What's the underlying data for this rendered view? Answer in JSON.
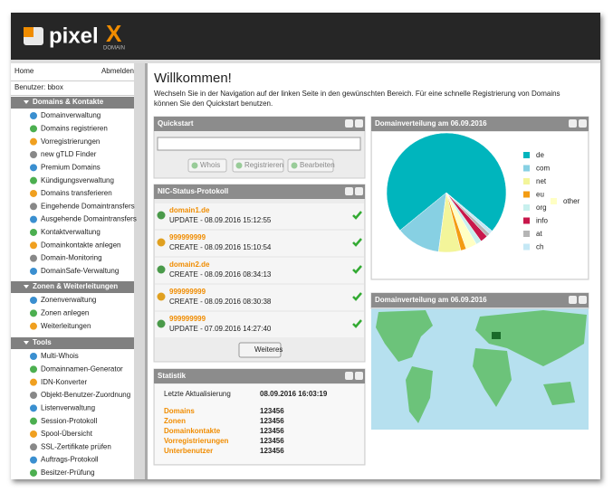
{
  "header": {
    "logo": "pixel",
    "logo_x": "X",
    "logo_sub": "DOMAIN"
  },
  "sidebar": {
    "home": "Home",
    "logout": "Abmelden",
    "user": "Benutzer: bbox",
    "sections": [
      {
        "title": "Domains & Kontakte",
        "items": [
          "Domainverwaltung",
          "Domains registrieren",
          "Vorregistrierungen",
          "new gTLD Finder",
          "Premium Domains",
          "Kündigungsverwaltung",
          "Domains transferieren",
          "Eingehende Domaintransfers",
          "Ausgehende Domaintransfers",
          "Kontaktverwaltung",
          "Domainkontakte anlegen",
          "Domain-Monitoring",
          "DomainSafe-Verwaltung"
        ]
      },
      {
        "title": "Zonen & Weiterleitungen",
        "items": [
          "Zonenverwaltung",
          "Zonen anlegen",
          "Weiterleitungen"
        ]
      },
      {
        "title": "Tools",
        "items": [
          "Multi-Whois",
          "Domainnamen-Generator",
          "IDN-Konverter",
          "Objekt-Benutzer-Zuordnung",
          "Listenverwaltung",
          "Session-Protokoll",
          "Spool-Übersicht",
          "SSL-Zertifikate prüfen",
          "Auftrags-Protokoll",
          "Besitzer-Prüfung"
        ]
      }
    ]
  },
  "main": {
    "title": "Willkommen!",
    "intro": [
      "Wechseln Sie in der Navigation auf der linken Seite in den gewünschten Bereich. Für eine schnelle Registrierung von Domains",
      "können Sie den Quickstart benutzen."
    ],
    "quickstart": {
      "title": "Quickstart",
      "buttons": [
        "Whois",
        "Registrieren",
        "Bearbeiten"
      ]
    },
    "nic": {
      "title": "NIC-Status-Protokoll",
      "entries": [
        {
          "name": "domain1.de",
          "status": "UPDATE - 08.09.2016 15:12:55"
        },
        {
          "name": "999999999",
          "status": "CREATE - 08.09.2016 15:10:54"
        },
        {
          "name": "domain2.de",
          "status": "CREATE - 08.09.2016 08:34:13"
        },
        {
          "name": "999999999",
          "status": "CREATE - 08.09.2016 08:30:38"
        },
        {
          "name": "999999999",
          "status": "UPDATE - 07.09.2016 14:27:40"
        }
      ],
      "more": "Weiteres"
    },
    "stats": {
      "title": "Statistik",
      "updated_label": "Letzte Aktualisierung",
      "updated": "08.09.2016 16:03:19",
      "rows": [
        {
          "label": "Domains",
          "value": "123456"
        },
        {
          "label": "Zonen",
          "value": "123456"
        },
        {
          "label": "Domainkontakte",
          "value": "123456"
        },
        {
          "label": "Vorregistrierungen",
          "value": "123456"
        },
        {
          "label": "Unterbenutzer",
          "value": "123456"
        }
      ]
    }
  },
  "distribution": {
    "title": "Domainverteilung am 06.09.2016",
    "slices": [
      {
        "label": "de",
        "value": 72,
        "color": "#00b5bd"
      },
      {
        "label": "com",
        "value": 12,
        "color": "#87d0e3"
      },
      {
        "label": "net",
        "value": 6,
        "color": "#f3f59a"
      },
      {
        "label": "eu",
        "value": 1.5,
        "color": "#f39c12"
      },
      {
        "label": "other",
        "value": 3,
        "color": "#ffffc4"
      },
      {
        "label": "org",
        "value": 1.5,
        "color": "#c8f0ee"
      },
      {
        "label": "info",
        "value": 2,
        "color": "#c8174b"
      },
      {
        "label": "at",
        "value": 1,
        "color": "#b5b5b5"
      },
      {
        "label": "ch",
        "value": 1,
        "color": "#c5e8f5"
      }
    ]
  },
  "map": {
    "title": "Domainverteilung am 06.09.2016"
  }
}
